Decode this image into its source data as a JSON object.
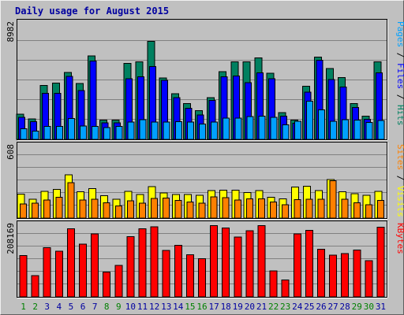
{
  "chart_data": {
    "type": "bar",
    "title": "Daily usage for August 2015",
    "categories": [
      "1",
      "2",
      "3",
      "4",
      "5",
      "6",
      "7",
      "8",
      "9",
      "10",
      "11",
      "12",
      "13",
      "14",
      "15",
      "16",
      "17",
      "18",
      "19",
      "20",
      "21",
      "22",
      "23",
      "24",
      "25",
      "26",
      "27",
      "28",
      "29",
      "30",
      "31"
    ],
    "weekend_days": [
      "1",
      "2",
      "8",
      "9",
      "15",
      "16",
      "22",
      "23",
      "29",
      "30"
    ],
    "colors": {
      "pages": "#0000ff",
      "files": "#008060",
      "hits": "#00a0ff",
      "visits": "#ffff00",
      "sites": "#ff8000",
      "kbytes": "#ff0000",
      "weekday_label": "#0000a0",
      "weekend_label": "#008000"
    },
    "panels": [
      {
        "name": "hits-files-pages",
        "scale_label": "8982",
        "ylim": [
          0,
          8982
        ],
        "right_label_parts": [
          {
            "text": "Pages",
            "color": "#00a0ff"
          },
          {
            "text": " / ",
            "color": "#000000"
          },
          {
            "text": "Files",
            "color": "#0000ff"
          },
          {
            "text": " / ",
            "color": "#000000"
          },
          {
            "text": "Hits",
            "color": "#008060"
          }
        ],
        "series": [
          {
            "name": "Hits",
            "values": [
              1950,
              1570,
              4160,
              4340,
              5170,
              4300,
              6420,
              1500,
              1500,
              5850,
              5970,
              7560,
              4720,
              3520,
              2770,
              2200,
              3230,
              5230,
              5970,
              5970,
              6290,
              5100,
              2050,
              1500,
              4100,
              6350,
              5450,
              4750,
              2770,
              1780,
              5970
            ]
          },
          {
            "name": "Files",
            "values": [
              1700,
              1380,
              3550,
              3550,
              4840,
              3760,
              6050,
              1280,
              1280,
              4670,
              4830,
              5620,
              4560,
              3210,
              2390,
              1880,
              3010,
              4830,
              4890,
              4370,
              5130,
              4670,
              1780,
              1230,
              3630,
              6100,
              4610,
              4030,
              2450,
              1550,
              5120
            ]
          },
          {
            "name": "Pages",
            "values": [
              830,
              630,
              1000,
              1000,
              1600,
              1020,
              990,
              920,
              1000,
              1320,
              1530,
              1350,
              1320,
              1360,
              1350,
              1180,
              1320,
              1630,
              1630,
              1750,
              1800,
              1710,
              1110,
              1410,
              2950,
              2280,
              1390,
              1520,
              1490,
              1290,
              1450
            ]
          }
        ]
      },
      {
        "name": "visits-sites",
        "scale_label": "608",
        "ylim": [
          0,
          608
        ],
        "right_label_parts": [
          {
            "text": "Sites",
            "color": "#ff8000"
          },
          {
            "text": " / ",
            "color": "#000000"
          },
          {
            "text": "Visits",
            "color": "#ffff00"
          }
        ],
        "series": [
          {
            "name": "Visits",
            "values": [
              200,
              160,
              225,
              242,
              364,
              221,
              249,
              190,
              160,
              225,
              198,
              265,
              211,
              197,
              197,
              191,
              231,
              234,
              234,
              216,
              231,
              176,
              162,
              262,
              268,
              232,
              324,
              222,
              204,
              193,
              226
            ]
          },
          {
            "name": "Sites",
            "values": [
              119,
              125,
              151,
              174,
              299,
              152,
              157,
              128,
              102,
              144,
              124,
              166,
              168,
              148,
              135,
              124,
              177,
              172,
              151,
              161,
              163,
              136,
              114,
              154,
              160,
              157,
              314,
              158,
              129,
              114,
              150
            ]
          }
        ]
      },
      {
        "name": "kbytes",
        "scale_label": "208169",
        "ylim": [
          0,
          208169
        ],
        "right_label_parts": [
          {
            "text": "KBytes",
            "color": "#ff0000"
          }
        ],
        "series": [
          {
            "name": "KBytes",
            "values": [
              119000,
              61000,
              141000,
              131000,
              196000,
              152000,
              181000,
              71000,
              90000,
              173000,
              196000,
              201000,
              133000,
              148000,
              121000,
              110000,
              205000,
              198000,
              172000,
              190000,
              205000,
              75000,
              49000,
              181000,
              191000,
              137000,
              120000,
              124000,
              135000,
              104000,
              200000
            ]
          }
        ]
      }
    ]
  }
}
